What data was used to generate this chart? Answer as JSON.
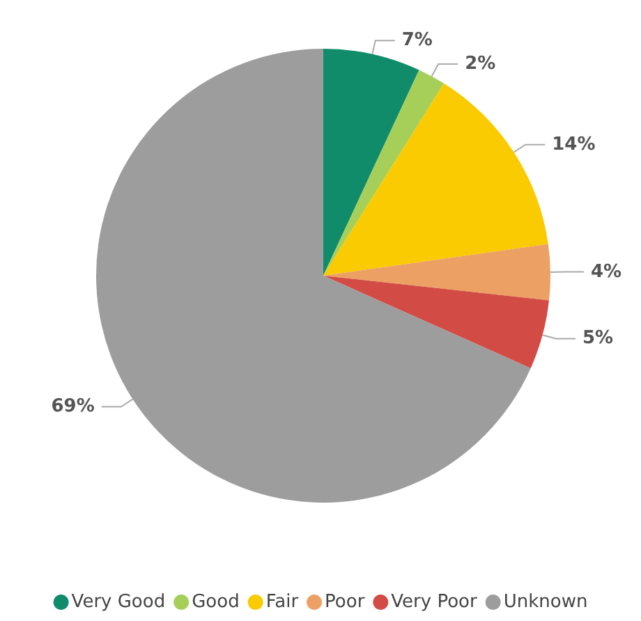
{
  "chart_data": {
    "type": "pie",
    "categories": [
      "Very Good",
      "Good",
      "Fair",
      "Poor",
      "Very Poor",
      "Unknown"
    ],
    "values": [
      7,
      2,
      14,
      4,
      5,
      69
    ],
    "value_labels": [
      "7%",
      "2%",
      "14%",
      "4%",
      "5%",
      "69%"
    ],
    "colors": [
      "#118c6a",
      "#a5cf59",
      "#f9cb00",
      "#eda064",
      "#d24c45",
      "#9d9d9d"
    ],
    "legend": "bottom"
  }
}
